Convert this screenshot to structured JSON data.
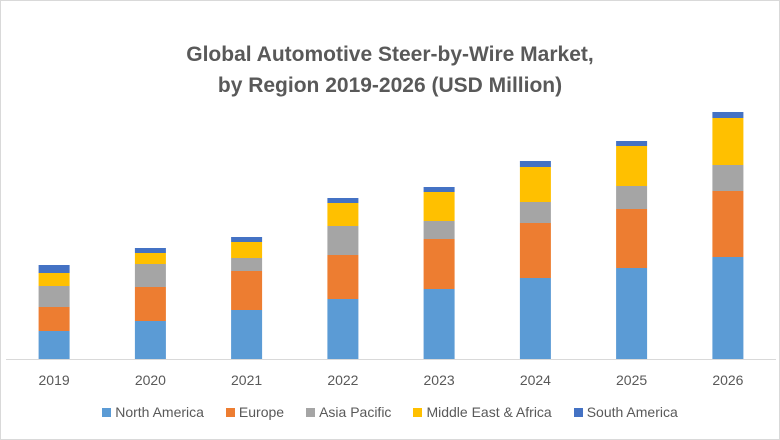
{
  "chart_data": {
    "type": "bar",
    "stacked": true,
    "title_lines": [
      "Global Automotive Steer-by-Wire Market,",
      "by Region 2019-2026 (USD Million)"
    ],
    "xlabel": "",
    "ylabel": "",
    "y_axis_visible": false,
    "units_note": "no y-axis scale shown; values are approximate relative units",
    "grid": false,
    "legend_position": "bottom",
    "categories": [
      "2019",
      "2020",
      "2021",
      "2022",
      "2023",
      "2024",
      "2025",
      "2026"
    ],
    "series": [
      {
        "name": "North America",
        "color": "#5b9bd5",
        "values": [
          28,
          38,
          49,
          60,
          70,
          81,
          91,
          102
        ]
      },
      {
        "name": "Europe",
        "color": "#ed7d31",
        "values": [
          24,
          34,
          39,
          44,
          50,
          55,
          59,
          66
        ]
      },
      {
        "name": "Asia Pacific",
        "color": "#a5a5a5",
        "values": [
          21,
          23,
          13,
          29,
          18,
          21,
          23,
          26
        ]
      },
      {
        "name": "Middle East & Africa",
        "color": "#ffc000",
        "values": [
          13,
          11,
          16,
          23,
          29,
          35,
          40,
          47
        ]
      },
      {
        "name": "South America",
        "color": "#4472c4",
        "values": [
          8,
          5,
          5,
          5,
          5,
          6,
          5,
          6
        ]
      }
    ],
    "ylim": [
      0,
      250
    ]
  }
}
